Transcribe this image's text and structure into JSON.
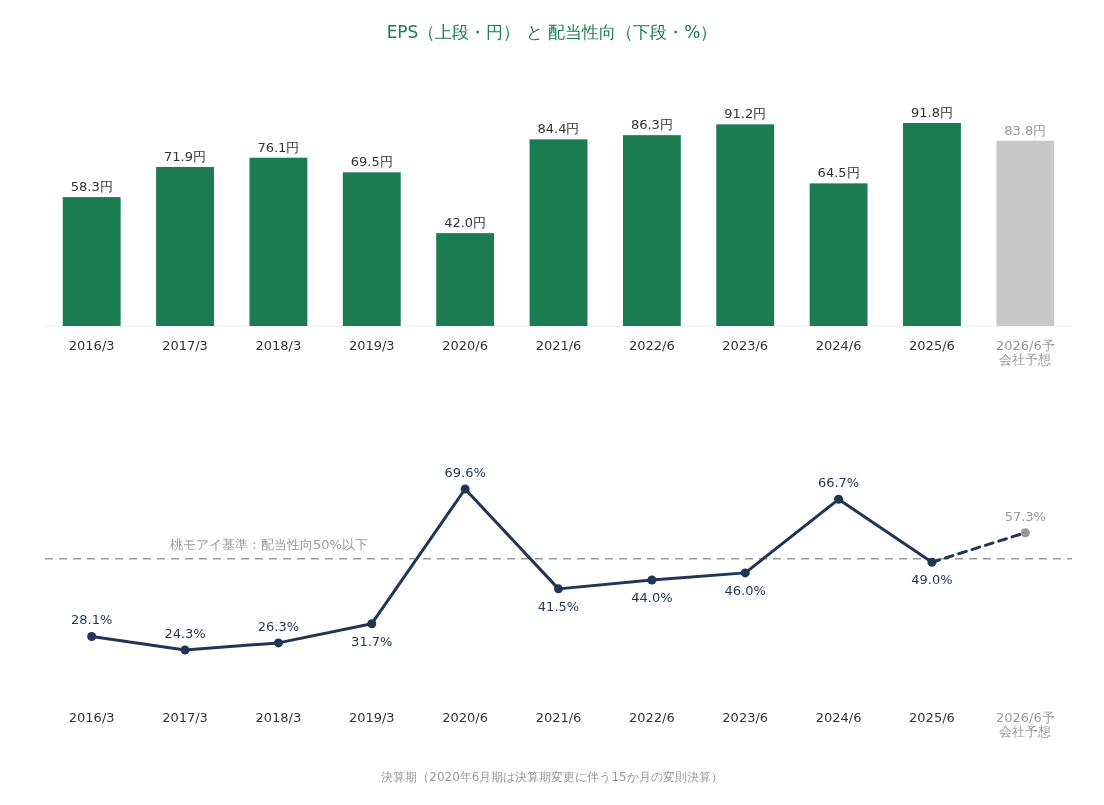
{
  "chart_data": [
    {
      "type": "bar",
      "title": "EPS（上段・円） と 配当性向（下段・%）",
      "categories": [
        "2016/3",
        "2017/3",
        "2018/3",
        "2019/3",
        "2020/6",
        "2021/6",
        "2022/6",
        "2023/6",
        "2024/6",
        "2025/6",
        "2026/6予会社予想"
      ],
      "values": [
        58.3,
        71.9,
        76.1,
        69.5,
        42.0,
        84.4,
        86.3,
        91.2,
        64.5,
        91.8,
        83.8
      ],
      "colors": [
        "#1b7b53",
        "#1b7b53",
        "#1b7b53",
        "#1b7b53",
        "#1b7b53",
        "#1b7b53",
        "#1b7b53",
        "#1b7b53",
        "#1b7b53",
        "#1b7b53",
        "#c8c8c8"
      ],
      "value_labels": [
        "58.3円",
        "71.9円",
        "76.1円",
        "69.5円",
        "42.0円",
        "84.4円",
        "86.3円",
        "91.2円",
        "64.5円",
        "91.8円",
        "83.8円"
      ]
    },
    {
      "type": "line",
      "categories": [
        "2016/3",
        "2017/3",
        "2018/3",
        "2019/3",
        "2020/6",
        "2021/6",
        "2022/6",
        "2023/6",
        "2024/6",
        "2025/6",
        "2026/6予会社予想"
      ],
      "marker": "circle",
      "series": [
        {
          "color": "#1f3655",
          "line_style": "solid",
          "values": [
            28.1,
            24.3,
            26.3,
            31.7,
            69.6,
            41.5,
            44.0,
            46.0,
            66.7,
            49.0,
            null
          ],
          "value_labels": [
            "28.1%",
            "24.3%",
            "26.3%",
            "31.7%",
            "69.6%",
            "41.5%",
            "44.0%",
            "46.0%",
            "66.7%",
            "49.0%",
            null
          ]
        },
        {
          "color": "#1f3655",
          "line_style": "dashed",
          "values": [
            null,
            null,
            null,
            null,
            null,
            null,
            null,
            null,
            null,
            49.0,
            57.3
          ],
          "colors": [
            null,
            null,
            null,
            null,
            null,
            null,
            null,
            null,
            null,
            null,
            "#999999"
          ],
          "value_labels": [
            null,
            null,
            null,
            null,
            null,
            null,
            null,
            null,
            null,
            null,
            "57.3%"
          ]
        }
      ],
      "ref_lines": [
        {
          "axis": "y",
          "value": 50,
          "label": "桃モアイ基準：配当性向50%以下",
          "color": "#999999",
          "line_style": "dashed"
        }
      ],
      "annotations": [
        "決算期（2020年6月期は決算期変更に伴う15か月の変則決算）"
      ]
    }
  ]
}
